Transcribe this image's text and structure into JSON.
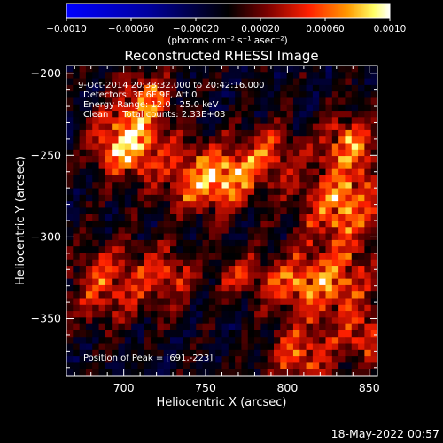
{
  "chart_data": {
    "type": "heatmap",
    "title": "Reconstructed RHESSI Image",
    "xlabel": "Heliocentric X (arcsec)",
    "ylabel": "Heliocentric Y (arcsec)",
    "xlim": [
      665,
      855
    ],
    "ylim": [
      -385,
      -195
    ],
    "x_ticks": [
      700,
      750,
      800,
      850
    ],
    "y_ticks": [
      -200,
      -250,
      -300,
      -350
    ],
    "x_tick_labels": [
      "700",
      "750",
      "800",
      "850"
    ],
    "y_tick_labels": [
      "−200",
      "−250",
      "−300",
      "−350"
    ],
    "colorbar": {
      "range": [
        -0.001,
        0.001
      ],
      "ticks": [
        -0.001,
        -0.0006,
        -0.0002,
        0.0002,
        0.0006,
        0.001
      ],
      "tick_labels": [
        "−0.0010",
        "−0.00060",
        "−0.00020",
        "0.00020",
        "0.00060",
        "0.0010"
      ],
      "unit_label": "(photons cm⁻² s⁻¹ asec⁻²)",
      "colors": [
        "#0000ff",
        "#000000",
        "#7a0000",
        "#ff2000",
        "#ff9a00",
        "#ffff66",
        "#ffffff"
      ]
    },
    "annotations": [
      "9-Oct-2014 20:38:32.000 to 20:42:16.000",
      "Detectors: 3F 6F 9F, Att 0",
      "Energy Range: 12.0 - 25.0 keV",
      "Clean     Total counts: 2.33E+03"
    ],
    "peak_annotation": "Position of Peak = [691,-223]",
    "peak": {
      "x": 691,
      "y": -223
    },
    "grid": {
      "cell_arcsec": 4,
      "nx": 48,
      "ny": 48
    }
  },
  "footer": {
    "timestamp": "18-May-2022 00:57"
  }
}
